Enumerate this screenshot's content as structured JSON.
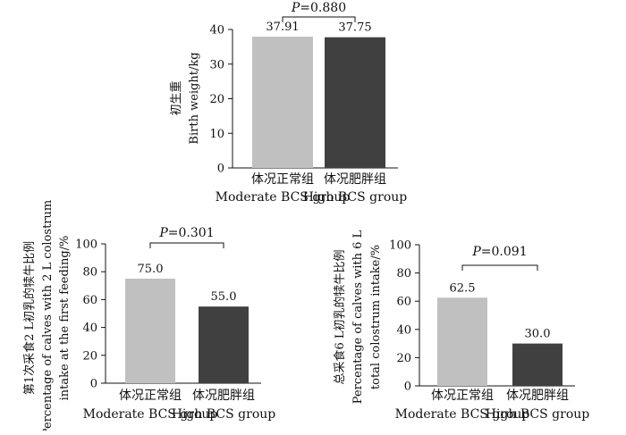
{
  "chart_data": [
    {
      "type": "bar",
      "categories": [
        "体况正常组\nModerate BCS group",
        "体况肥胖组\nHigh BCS group"
      ],
      "category_lines": [
        [
          "体况正常组",
          "Moderate BCS group"
        ],
        [
          "体况肥胖组",
          "High BCS group"
        ]
      ],
      "values": [
        37.91,
        37.75
      ],
      "value_labels": [
        "37.91",
        "37.75"
      ],
      "ylabel_lines": [
        "初生重",
        "Birth weight/kg"
      ],
      "ylim": [
        0,
        40
      ],
      "yticks": [
        0,
        10,
        20,
        30,
        40
      ],
      "annotation": {
        "prefix": "P",
        "value": "=0.880"
      },
      "colors": [
        "#c0c0c0",
        "#404040"
      ],
      "grid": false
    },
    {
      "type": "bar",
      "categories": [
        "体况正常组\nModerate BCS group",
        "体况肥胖组\nHigh BCS group"
      ],
      "category_lines": [
        [
          "体况正常组",
          "Moderate BCS group"
        ],
        [
          "体况肥胖组",
          "High BCS group"
        ]
      ],
      "values": [
        75.0,
        55.0
      ],
      "value_labels": [
        "75.0",
        "55.0"
      ],
      "ylabel_lines": [
        "第1次采食2 L初乳的犊牛比例",
        "Percentage of calves with 2 L colostrum",
        "intake at the first feeding/%"
      ],
      "ylim": [
        0,
        100
      ],
      "yticks": [
        0,
        20,
        40,
        60,
        80,
        100
      ],
      "annotation": {
        "prefix": "P",
        "value": "=0.301"
      },
      "colors": [
        "#c0c0c0",
        "#404040"
      ],
      "grid": false
    },
    {
      "type": "bar",
      "categories": [
        "体况正常组\nModerate BCS group",
        "体况肥胖组\nHigh BCS group"
      ],
      "category_lines": [
        [
          "体况正常组",
          "Moderate BCS group"
        ],
        [
          "体况肥胖组",
          "High BCS group"
        ]
      ],
      "values": [
        62.5,
        30.0
      ],
      "value_labels": [
        "62.5",
        "30.0"
      ],
      "ylabel_lines": [
        "总采食6 L初乳的犊牛比例",
        "Percentage of calves with 6 L",
        "total colostrum intake/%"
      ],
      "ylim": [
        0,
        100
      ],
      "yticks": [
        0,
        20,
        40,
        60,
        80,
        100
      ],
      "annotation": {
        "prefix": "P",
        "value": "=0.091"
      },
      "colors": [
        "#c0c0c0",
        "#404040"
      ],
      "grid": false
    }
  ]
}
